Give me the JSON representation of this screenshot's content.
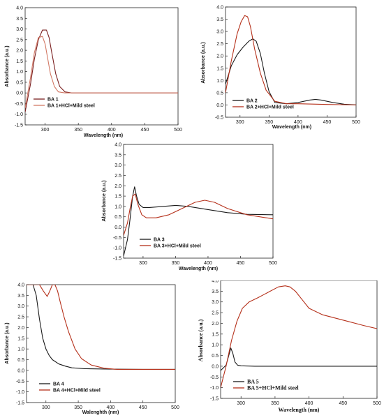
{
  "colors": {
    "black_series": "#1a1a1a",
    "red_series": "#b5301a"
  },
  "chart_data": [
    {
      "type": "line",
      "xlabel": "Wavelength (nm)",
      "ylabel": "Absorbance (a.u.)",
      "xlim": [
        270,
        500
      ],
      "ylim": [
        -1.5,
        4.0
      ],
      "xticks": [
        300,
        350,
        400,
        450,
        500
      ],
      "yticks": [
        -1.5,
        -1.0,
        -0.5,
        0.0,
        0.5,
        1.0,
        1.5,
        2.0,
        2.5,
        3.0,
        3.5,
        4.0
      ],
      "legend_position": "bottom-left",
      "series": [
        {
          "name": "BA 1",
          "color": "#7a1f1f",
          "x": [
            270,
            278,
            284,
            290,
            296,
            302,
            306,
            310,
            316,
            322,
            330,
            340,
            360,
            400,
            450,
            500
          ],
          "y": [
            -0.9,
            0.4,
            1.6,
            2.5,
            2.95,
            2.95,
            2.6,
            1.9,
            0.9,
            0.3,
            0.05,
            0.0,
            0.0,
            0.0,
            0.0,
            0.0
          ]
        },
        {
          "name": "BA 1+HCl+Mild steel",
          "color": "#d27864",
          "x": [
            270,
            278,
            284,
            290,
            296,
            300,
            304,
            308,
            314,
            320,
            330,
            340,
            360,
            400,
            450,
            500
          ],
          "y": [
            -0.7,
            0.7,
            1.9,
            2.6,
            2.65,
            2.3,
            1.6,
            0.9,
            0.3,
            0.05,
            0.0,
            0.0,
            0.0,
            0.0,
            0.0,
            0.0
          ]
        }
      ]
    },
    {
      "type": "line",
      "xlabel": "Wavelength (nm)",
      "ylabel": "Absorbance (a.u.)",
      "xlim": [
        275,
        500
      ],
      "ylim": [
        -0.5,
        4.0
      ],
      "xticks": [
        300,
        350,
        400,
        450,
        500
      ],
      "yticks": [
        -0.5,
        0.0,
        0.5,
        1.0,
        1.5,
        2.0,
        2.5,
        3.0,
        3.5,
        4.0
      ],
      "legend_position": "bottom-left",
      "series": [
        {
          "name": "BA 2",
          "color": "#1a1a1a",
          "x": [
            275,
            285,
            295,
            305,
            315,
            322,
            328,
            335,
            342,
            350,
            360,
            380,
            400,
            420,
            430,
            440,
            460,
            480,
            500
          ],
          "y": [
            0.85,
            1.6,
            2.05,
            2.35,
            2.6,
            2.7,
            2.6,
            2.1,
            1.3,
            0.55,
            0.1,
            0.05,
            0.1,
            0.2,
            0.23,
            0.2,
            0.1,
            0.03,
            0.0
          ]
        },
        {
          "name": "BA 2+HCl+Mild steel",
          "color": "#b5301a",
          "x": [
            275,
            285,
            295,
            302,
            308,
            313,
            318,
            325,
            335,
            345,
            360,
            380,
            400,
            450,
            500
          ],
          "y": [
            0.5,
            1.8,
            2.9,
            3.4,
            3.65,
            3.6,
            3.2,
            2.3,
            1.3,
            0.6,
            0.15,
            0.05,
            0.05,
            0.02,
            0.0
          ]
        }
      ]
    },
    {
      "type": "line",
      "xlabel": "Wavelength (nm)",
      "ylabel": "Absorbance (a.u.)",
      "xlim": [
        270,
        500
      ],
      "ylim": [
        -1.5,
        4.0
      ],
      "xticks": [
        300,
        350,
        400,
        450,
        500
      ],
      "yticks": [
        -1.5,
        -1.0,
        -0.5,
        0.0,
        0.5,
        1.0,
        1.5,
        2.0,
        2.5,
        3.0,
        3.5,
        4.0
      ],
      "legend_position": "bottom-left",
      "series": [
        {
          "name": "BA 3",
          "color": "#1a1a1a",
          "x": [
            270,
            276,
            280,
            284,
            287,
            290,
            294,
            300,
            310,
            330,
            350,
            370,
            400,
            430,
            460,
            500
          ],
          "y": [
            -1.4,
            -0.6,
            0.4,
            1.5,
            1.95,
            1.5,
            1.1,
            0.95,
            0.95,
            1.0,
            1.05,
            1.0,
            0.85,
            0.7,
            0.62,
            0.6
          ]
        },
        {
          "name": "BA 3+HCl+Mild steel",
          "color": "#b5301a",
          "x": [
            270,
            276,
            280,
            284,
            288,
            292,
            298,
            305,
            320,
            340,
            360,
            380,
            395,
            410,
            430,
            460,
            500
          ],
          "y": [
            -0.4,
            0.2,
            0.9,
            1.5,
            1.6,
            1.1,
            0.6,
            0.45,
            0.45,
            0.6,
            0.9,
            1.2,
            1.3,
            1.2,
            0.9,
            0.6,
            0.4
          ]
        }
      ]
    },
    {
      "type": "line",
      "xlabel": "Walenghth (nm)",
      "ylabel": "Absorbance (a.u.)",
      "xlim": [
        270,
        500
      ],
      "ylim": [
        -1.5,
        4.0
      ],
      "xticks": [
        300,
        350,
        400,
        450,
        500
      ],
      "yticks": [
        -1.5,
        -1.0,
        -0.5,
        0.0,
        0.5,
        1.0,
        1.5,
        2.0,
        2.5,
        3.0,
        3.5,
        4.0
      ],
      "legend_position": "bottom-left",
      "series": [
        {
          "name": "BA 4",
          "color": "#1a1a1a",
          "x": [
            270,
            280,
            285,
            290,
            295,
            300,
            305,
            310,
            320,
            330,
            340,
            360,
            400,
            450,
            500
          ],
          "y": [
            4.0,
            4.0,
            3.5,
            2.4,
            1.5,
            1.0,
            0.7,
            0.5,
            0.3,
            0.2,
            0.12,
            0.08,
            0.06,
            0.05,
            0.05
          ]
        },
        {
          "name": "BA 4+HCl+Mild steel",
          "color": "#b5301a",
          "x": [
            270,
            290,
            296,
            302,
            306,
            310,
            314,
            318,
            322,
            328,
            335,
            345,
            355,
            370,
            390,
            410,
            450,
            500
          ],
          "y": [
            4.0,
            4.0,
            3.7,
            3.45,
            3.7,
            4.0,
            4.0,
            3.7,
            3.2,
            2.5,
            1.8,
            1.0,
            0.55,
            0.25,
            0.1,
            0.05,
            0.05,
            0.05
          ]
        }
      ]
    },
    {
      "type": "line",
      "xlabel": "Wavelength (nm)",
      "ylabel": "Absorbance (a.u.)",
      "xlim": [
        270,
        500
      ],
      "ylim": [
        -1.5,
        4.0
      ],
      "xticks": [
        300,
        350,
        400,
        450,
        500
      ],
      "yticks": [
        -1.5,
        -1.0,
        -0.5,
        0.0,
        0.5,
        1.0,
        1.5,
        2.0,
        2.5,
        3.0,
        3.5,
        4.0
      ],
      "legend_position": "bottom-left",
      "series": [
        {
          "name": "BA 5",
          "color": "#1a1a1a",
          "x": [
            270,
            278,
            282,
            285,
            288,
            291,
            295,
            300,
            320,
            350,
            400,
            450,
            500
          ],
          "y": [
            -0.2,
            0.05,
            0.5,
            0.85,
            0.6,
            0.2,
            0.05,
            0.02,
            0.0,
            0.0,
            0.0,
            0.0,
            0.0
          ]
        },
        {
          "name": "BA 5+HCl+Mild steel",
          "color": "#b5301a",
          "x": [
            270,
            278,
            286,
            294,
            302,
            312,
            325,
            340,
            355,
            365,
            372,
            380,
            390,
            400,
            420,
            450,
            480,
            500
          ],
          "y": [
            -1.0,
            0.0,
            1.2,
            2.1,
            2.7,
            3.0,
            3.2,
            3.45,
            3.7,
            3.75,
            3.7,
            3.5,
            3.1,
            2.7,
            2.4,
            2.15,
            1.9,
            1.75
          ]
        }
      ]
    }
  ]
}
